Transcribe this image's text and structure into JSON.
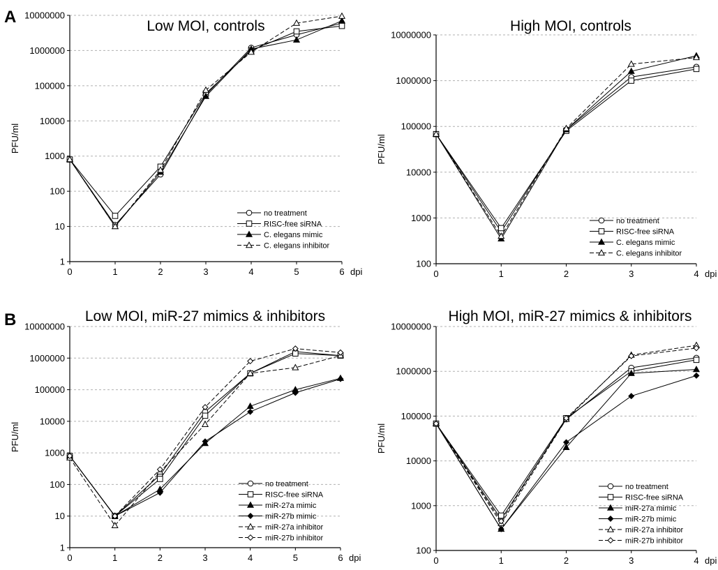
{
  "panels": {
    "A": "A",
    "B": "B"
  },
  "chart_data": [
    {
      "type": "line",
      "title": "Low MOI, controls",
      "ylabel": "PFU/ml",
      "xlabel": "dpi",
      "yscale": "log",
      "ylim": [
        1,
        10000000
      ],
      "xlim": [
        0,
        6
      ],
      "x": [
        0,
        1,
        2,
        3,
        4,
        5,
        6
      ],
      "xtick_labels": [
        "0",
        "1",
        "2",
        "3",
        "4",
        "5",
        "6"
      ],
      "ytick_labels": [
        "1",
        "10",
        "100",
        "1000",
        "10000",
        "100000",
        "1000000",
        "10000000"
      ],
      "grid": "horizontal dashed",
      "legend_position": "bottom-right",
      "series": [
        {
          "name": "no treatment",
          "marker": "circle-open",
          "line": "solid",
          "values": [
            800,
            11,
            300,
            55000,
            1200000,
            2800000,
            6000000
          ]
        },
        {
          "name": "RISC-free siRNA",
          "marker": "square-open",
          "line": "solid",
          "values": [
            800,
            20,
            500,
            60000,
            1000000,
            3500000,
            5000000
          ]
        },
        {
          "name": "C. elegans mimic",
          "marker": "triangle-filled",
          "line": "solid",
          "values": [
            800,
            10,
            350,
            50000,
            1100000,
            2000000,
            7000000
          ]
        },
        {
          "name": "C. elegans inhibitor",
          "marker": "triangle-open",
          "line": "dashed",
          "values": [
            800,
            10,
            400,
            75000,
            900000,
            6000000,
            9500000
          ]
        }
      ]
    },
    {
      "type": "line",
      "title": "High MOI, controls",
      "ylabel": "PFU/ml",
      "xlabel": "dpi",
      "yscale": "log",
      "ylim": [
        100,
        10000000
      ],
      "xlim": [
        0,
        4
      ],
      "x": [
        0,
        1,
        2,
        3,
        4
      ],
      "xtick_labels": [
        "0",
        "1",
        "2",
        "3",
        "4"
      ],
      "ytick_labels": [
        "100",
        "1000",
        "10000",
        "100000",
        "1000000",
        "10000000"
      ],
      "grid": "horizontal dashed",
      "legend_position": "bottom-right",
      "series": [
        {
          "name": "no treatment",
          "marker": "circle-open",
          "line": "solid",
          "values": [
            68000,
            500,
            85000,
            1200000,
            2000000
          ]
        },
        {
          "name": "RISC-free siRNA",
          "marker": "square-open",
          "line": "solid",
          "values": [
            68000,
            600,
            80000,
            1000000,
            1800000
          ]
        },
        {
          "name": "C. elegans mimic",
          "marker": "triangle-filled",
          "line": "solid",
          "values": [
            68000,
            350,
            85000,
            1600000,
            3500000
          ]
        },
        {
          "name": "C. elegans inhibitor",
          "marker": "triangle-open",
          "line": "dashed",
          "values": [
            68000,
            400,
            90000,
            2300000,
            3200000
          ]
        }
      ]
    },
    {
      "type": "line",
      "title": "Low MOI, miR-27 mimics & inhibitors",
      "ylabel": "PFU/ml",
      "xlabel": "dpi",
      "yscale": "log",
      "ylim": [
        1,
        10000000
      ],
      "xlim": [
        0,
        6
      ],
      "x": [
        0,
        1,
        2,
        3,
        4,
        5,
        6
      ],
      "xtick_labels": [
        "0",
        "1",
        "2",
        "3",
        "4",
        "5",
        "6"
      ],
      "ytick_labels": [
        "1",
        "10",
        "100",
        "1000",
        "10000",
        "100000",
        "1000000",
        "10000000"
      ],
      "grid": "horizontal dashed",
      "legend_position": "bottom-right",
      "series": [
        {
          "name": "no treatment",
          "marker": "circle-open",
          "line": "solid",
          "values": [
            800,
            10,
            200,
            20000,
            330000,
            1600000,
            1200000
          ]
        },
        {
          "name": "RISC-free siRNA",
          "marker": "square-open",
          "line": "solid",
          "values": [
            800,
            10,
            150,
            15000,
            330000,
            1400000,
            1200000
          ]
        },
        {
          "name": "miR-27a mimic",
          "marker": "triangle-filled",
          "line": "solid",
          "values": [
            800,
            10,
            70,
            2000,
            30000,
            100000,
            230000
          ]
        },
        {
          "name": "miR-27b mimic",
          "marker": "diamond-filled",
          "line": "solid",
          "values": [
            800,
            10,
            55,
            2300,
            20000,
            80000,
            220000
          ]
        },
        {
          "name": "miR-27a inhibitor",
          "marker": "triangle-open",
          "line": "dashed",
          "values": [
            700,
            5,
            250,
            8000,
            330000,
            500000,
            1200000
          ]
        },
        {
          "name": "miR-27b inhibitor",
          "marker": "diamond-open",
          "line": "dashed",
          "values": [
            800,
            10,
            300,
            28000,
            800000,
            2000000,
            1500000
          ]
        }
      ]
    },
    {
      "type": "line",
      "title": "High MOI, miR-27 mimics & inhibitors",
      "ylabel": "PFU/ml",
      "xlabel": "dpi",
      "yscale": "log",
      "ylim": [
        100,
        10000000
      ],
      "xlim": [
        0,
        4
      ],
      "x": [
        0,
        1,
        2,
        3,
        4
      ],
      "xtick_labels": [
        "0",
        "1",
        "2",
        "3",
        "4"
      ],
      "ytick_labels": [
        "100",
        "1000",
        "10000",
        "100000",
        "1000000",
        "10000000"
      ],
      "grid": "horizontal dashed",
      "legend_position": "bottom-right",
      "series": [
        {
          "name": "no treatment",
          "marker": "circle-open",
          "line": "solid",
          "values": [
            68000,
            500,
            85000,
            1200000,
            2000000
          ]
        },
        {
          "name": "RISC-free siRNA",
          "marker": "square-open",
          "line": "solid",
          "values": [
            68000,
            600,
            90000,
            1000000,
            1800000
          ]
        },
        {
          "name": "miR-27a mimic",
          "marker": "triangle-filled",
          "line": "solid",
          "values": [
            68000,
            300,
            20000,
            900000,
            1100000
          ]
        },
        {
          "name": "miR-27b mimic",
          "marker": "diamond-filled",
          "line": "solid",
          "values": [
            68000,
            300,
            26000,
            280000,
            800000
          ]
        },
        {
          "name": "miR-27a inhibitor",
          "marker": "triangle-open",
          "line": "dashed",
          "values": [
            68000,
            400,
            85000,
            2300000,
            3800000
          ]
        },
        {
          "name": "miR-27b inhibitor",
          "marker": "diamond-open",
          "line": "dashed",
          "values": [
            68000,
            450,
            90000,
            2200000,
            3300000
          ]
        }
      ]
    }
  ]
}
